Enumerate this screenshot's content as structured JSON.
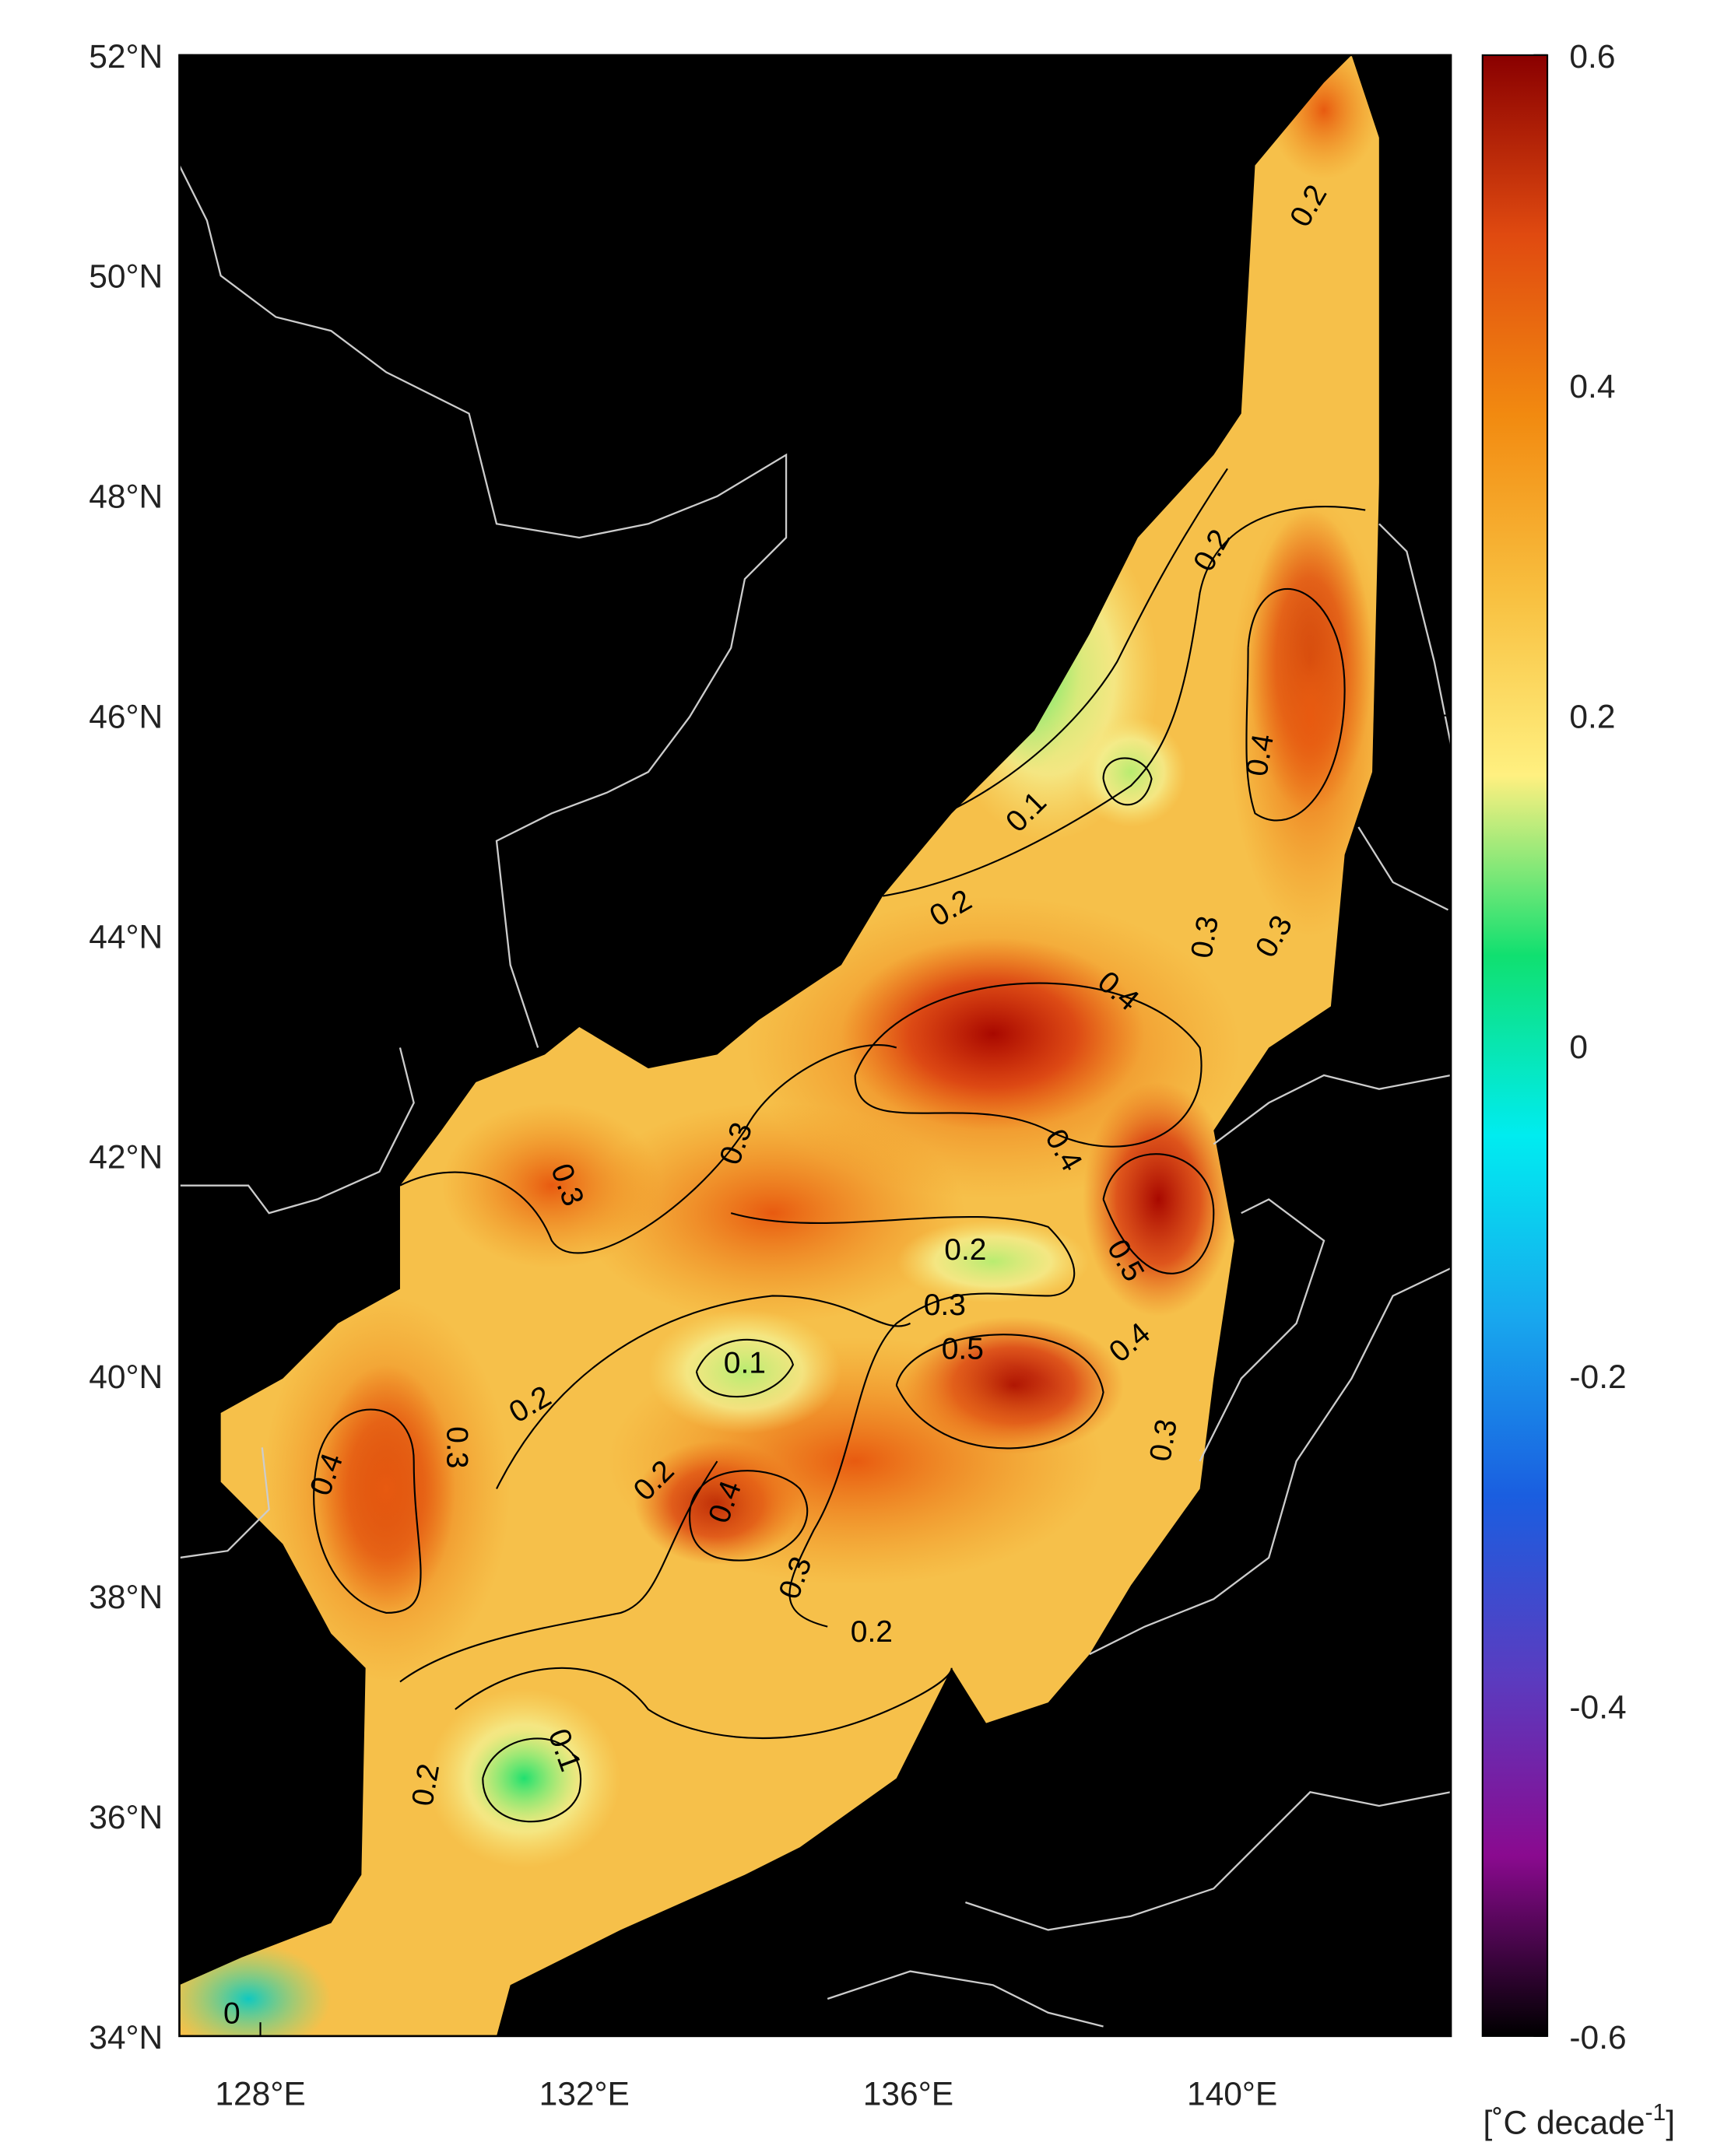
{
  "map": {
    "xlim": [
      127,
      142.7
    ],
    "ylim": [
      34,
      52
    ],
    "xticks": [
      {
        "value": 128,
        "label": "128°E"
      },
      {
        "value": 132,
        "label": "132°E"
      },
      {
        "value": 136,
        "label": "136°E"
      },
      {
        "value": 140,
        "label": "140°E"
      }
    ],
    "yticks": [
      {
        "value": 34,
        "label": "34°N"
      },
      {
        "value": 36,
        "label": "36°N"
      },
      {
        "value": 38,
        "label": "38°N"
      },
      {
        "value": 40,
        "label": "40°N"
      },
      {
        "value": 42,
        "label": "42°N"
      },
      {
        "value": 44,
        "label": "44°N"
      },
      {
        "value": 46,
        "label": "46°N"
      },
      {
        "value": 48,
        "label": "48°N"
      },
      {
        "value": 50,
        "label": "50°N"
      },
      {
        "value": 52,
        "label": "52°N"
      }
    ],
    "colorbar": {
      "lim": [
        -0.6,
        0.6
      ],
      "ticks": [
        -0.6,
        -0.4,
        -0.2,
        0,
        0.2,
        0.4,
        0.6
      ],
      "colormap": [
        "#000000",
        "#8a0a8f",
        "#5a3cc0",
        "#1a5ee0",
        "#18a8ee",
        "#00ecf0",
        "#10e070",
        "#fff080",
        "#f8c040",
        "#f28a10",
        "#e04a10",
        "#8a0000"
      ],
      "label_parts": [
        "[˚C decade",
        "-1",
        "]"
      ]
    },
    "contour_labels": [
      0.2,
      0.2,
      0.1,
      0.4,
      0.2,
      0.3,
      0.3,
      0.4,
      0.3,
      0.3,
      0.4,
      0.2,
      0.5,
      0.3,
      0.5,
      0.4,
      0.1,
      0.2,
      0.3,
      0.4,
      0.3,
      0.2,
      0.4,
      0.3,
      0.2,
      0.1,
      0.2,
      0
    ]
  }
}
